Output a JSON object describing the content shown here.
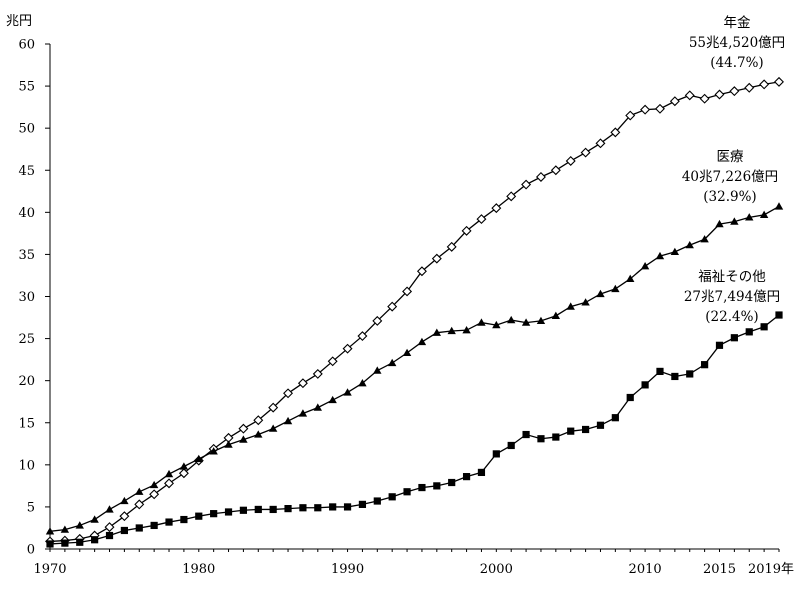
{
  "chart_data": {
    "type": "line",
    "title": "",
    "xlabel": "",
    "ylabel": "",
    "y_unit": "兆円",
    "ylim": [
      0,
      60
    ],
    "y_ticks": [
      0,
      5,
      10,
      15,
      20,
      25,
      30,
      35,
      40,
      45,
      50,
      55,
      60
    ],
    "xlim": [
      1970,
      2019
    ],
    "x_tick_labels": [
      {
        "year": 1970,
        "label": "1970"
      },
      {
        "year": 1980,
        "label": "1980"
      },
      {
        "year": 1990,
        "label": "1990"
      },
      {
        "year": 2000,
        "label": "2000"
      },
      {
        "year": 2010,
        "label": "2010"
      },
      {
        "year": 2015,
        "label": "2015"
      },
      {
        "year": 2019,
        "label": "2019年"
      }
    ],
    "grid": false,
    "x": [
      1970,
      1971,
      1972,
      1973,
      1974,
      1975,
      1976,
      1977,
      1978,
      1979,
      1980,
      1981,
      1982,
      1983,
      1984,
      1985,
      1986,
      1987,
      1988,
      1989,
      1990,
      1991,
      1992,
      1993,
      1994,
      1995,
      1996,
      1997,
      1998,
      1999,
      2000,
      2001,
      2002,
      2003,
      2004,
      2005,
      2006,
      2007,
      2008,
      2009,
      2010,
      2011,
      2012,
      2013,
      2014,
      2015,
      2016,
      2017,
      2018,
      2019
    ],
    "series": [
      {
        "name": "年金",
        "marker": "diamond-open",
        "values": [
          0.9,
          1.0,
          1.2,
          1.6,
          2.6,
          3.9,
          5.3,
          6.5,
          7.8,
          9.0,
          10.5,
          11.9,
          13.2,
          14.3,
          15.3,
          16.8,
          18.5,
          19.7,
          20.8,
          22.3,
          23.8,
          25.3,
          27.1,
          28.8,
          30.6,
          33.0,
          34.5,
          35.9,
          37.8,
          39.2,
          40.5,
          41.9,
          43.3,
          44.2,
          45.0,
          46.1,
          47.1,
          48.2,
          49.5,
          51.5,
          52.2,
          52.3,
          53.2,
          53.9,
          53.5,
          54.0,
          54.4,
          54.8,
          55.2,
          55.5
        ]
      },
      {
        "name": "医療",
        "marker": "triangle-filled",
        "values": [
          2.1,
          2.3,
          2.8,
          3.5,
          4.7,
          5.7,
          6.8,
          7.6,
          8.9,
          9.8,
          10.7,
          11.6,
          12.4,
          13.0,
          13.6,
          14.3,
          15.2,
          16.1,
          16.8,
          17.7,
          18.6,
          19.7,
          21.2,
          22.1,
          23.3,
          24.6,
          25.7,
          25.9,
          26.0,
          26.9,
          26.6,
          27.2,
          26.9,
          27.1,
          27.7,
          28.8,
          29.3,
          30.3,
          30.9,
          32.1,
          33.6,
          34.8,
          35.3,
          36.1,
          36.8,
          38.6,
          38.9,
          39.4,
          39.7,
          40.7
        ]
      },
      {
        "name": "福祉その他",
        "marker": "square-filled",
        "values": [
          0.6,
          0.7,
          0.8,
          1.1,
          1.6,
          2.2,
          2.5,
          2.8,
          3.2,
          3.5,
          3.9,
          4.2,
          4.4,
          4.6,
          4.7,
          4.7,
          4.8,
          4.9,
          4.9,
          5.0,
          5.0,
          5.3,
          5.7,
          6.2,
          6.8,
          7.3,
          7.5,
          7.9,
          8.6,
          9.1,
          11.3,
          12.3,
          13.6,
          13.1,
          13.3,
          14.0,
          14.2,
          14.7,
          15.6,
          18.0,
          19.5,
          21.1,
          20.5,
          20.8,
          21.9,
          24.2,
          25.1,
          25.8,
          26.4,
          27.8
        ]
      }
    ],
    "annotations": [
      {
        "series": "年金",
        "lines": [
          "年金",
          "55兆4,520億円",
          "(44.7%)"
        ]
      },
      {
        "series": "医療",
        "lines": [
          "医療",
          "40兆7,226億円",
          "(32.9%)"
        ]
      },
      {
        "series": "福祉その他",
        "lines": [
          "福祉その他",
          "27兆7,494億円",
          "(22.4%)"
        ]
      }
    ]
  }
}
